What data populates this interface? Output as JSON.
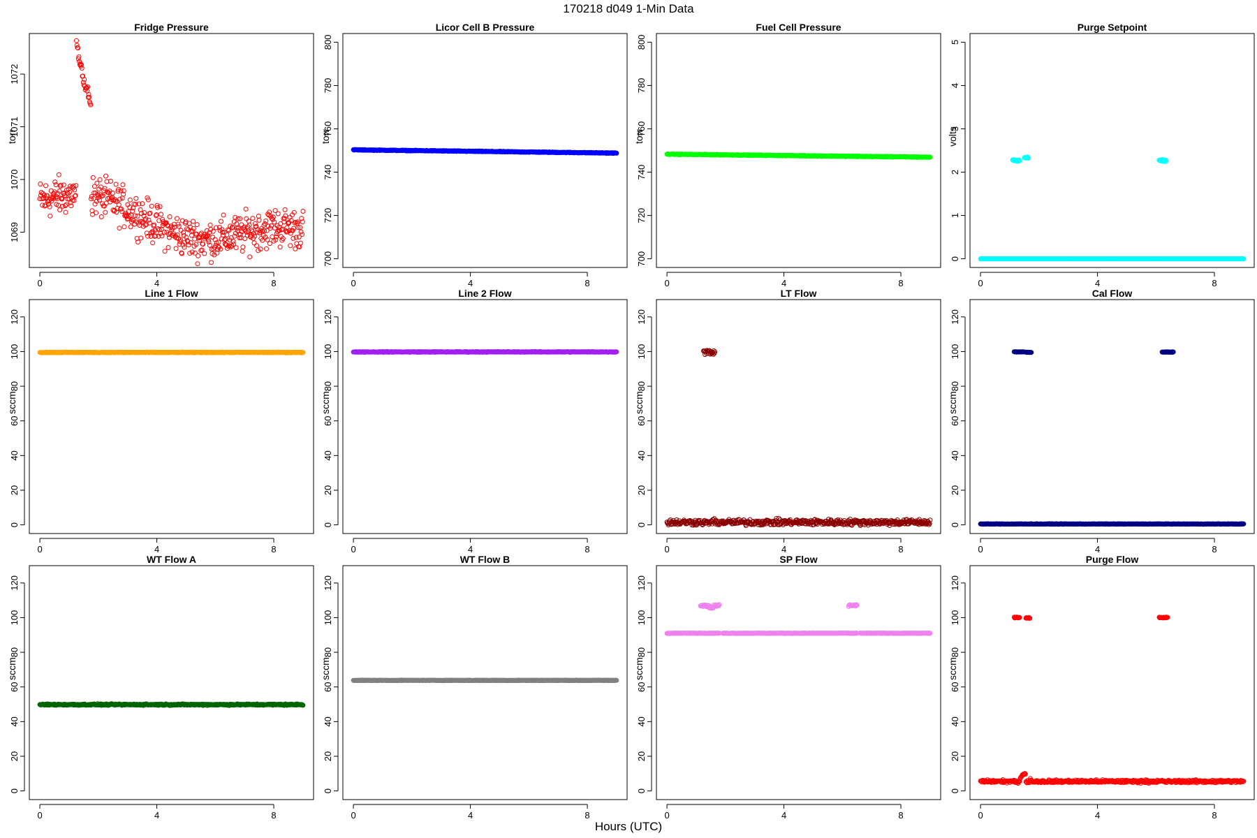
{
  "figure": {
    "title": "170218   d049   1-Min Data",
    "xlabel": "Hours (UTC)"
  },
  "chart_data": [
    {
      "id": "fridge-pressure",
      "type": "scatter",
      "title": "Fridge Pressure",
      "ylabel": "torr",
      "color": "#ff0000",
      "marker": "open-circle",
      "xlim": [
        -0.36,
        9.36
      ],
      "ylim": [
        1068.33,
        1072.77
      ],
      "xticks": [
        0,
        4,
        8
      ],
      "yticks": [
        1069,
        1070,
        1071,
        1072
      ],
      "pattern": {
        "kind": "noisy-trend",
        "start": 1069.6,
        "end": 1068.8,
        "noise": 0.55,
        "spike": {
          "start": 1.25,
          "end": 1.75,
          "peak": 1072.6,
          "low": 1071.4
        }
      }
    },
    {
      "id": "licor-cell-b-pressure",
      "type": "scatter",
      "title": "Licor Cell B Pressure",
      "ylabel": "torr",
      "color": "#0000ff",
      "marker": "open-circle",
      "xlim": [
        -0.36,
        9.36
      ],
      "ylim": [
        696,
        804
      ],
      "xticks": [
        0,
        4,
        8
      ],
      "yticks": [
        700,
        720,
        740,
        760,
        780,
        800
      ],
      "pattern": {
        "kind": "line",
        "start": 750.3,
        "end": 748.8,
        "noise": 0.25
      }
    },
    {
      "id": "fuel-cell-pressure",
      "type": "scatter",
      "title": "Fuel Cell Pressure",
      "ylabel": "torr",
      "color": "#00ff00",
      "marker": "open-circle",
      "xlim": [
        -0.36,
        9.36
      ],
      "ylim": [
        696,
        804
      ],
      "xticks": [
        0,
        4,
        8
      ],
      "yticks": [
        700,
        720,
        740,
        760,
        780,
        800
      ],
      "pattern": {
        "kind": "line",
        "start": 748.3,
        "end": 746.9,
        "noise": 0.25
      }
    },
    {
      "id": "purge-setpoint",
      "type": "scatter",
      "title": "Purge Setpoint",
      "ylabel": "volts",
      "color": "#00ffff",
      "marker": "open-circle",
      "xlim": [
        -0.36,
        9.36
      ],
      "ylim": [
        -0.2,
        5.2
      ],
      "xticks": [
        0,
        4,
        8
      ],
      "yticks": [
        0,
        1,
        2,
        3,
        4,
        5
      ],
      "pattern": {
        "kind": "baseline-events",
        "base": 0.0,
        "noise": 0.0,
        "event_noise": 0.03,
        "events": [
          {
            "start": 1.1,
            "end": 1.35,
            "value": 2.27
          },
          {
            "start": 1.5,
            "end": 1.65,
            "value": 2.33
          },
          {
            "start": 6.1,
            "end": 6.35,
            "value": 2.27
          }
        ]
      }
    },
    {
      "id": "line-1-flow",
      "type": "scatter",
      "title": "Line 1 Flow",
      "ylabel": "sccm",
      "color": "#ffa500",
      "marker": "open-circle",
      "xlim": [
        -0.36,
        9.36
      ],
      "ylim": [
        -5,
        130
      ],
      "xticks": [
        0,
        4,
        8
      ],
      "yticks": [
        0,
        20,
        40,
        60,
        80,
        100,
        120
      ],
      "pattern": {
        "kind": "line",
        "start": 99.5,
        "end": 99.5,
        "noise": 0.3
      }
    },
    {
      "id": "line-2-flow",
      "type": "scatter",
      "title": "Line 2 Flow",
      "ylabel": "sccm",
      "color": "#a020f0",
      "marker": "open-circle",
      "xlim": [
        -0.36,
        9.36
      ],
      "ylim": [
        -5,
        130
      ],
      "xticks": [
        0,
        4,
        8
      ],
      "yticks": [
        0,
        20,
        40,
        60,
        80,
        100,
        120
      ],
      "pattern": {
        "kind": "line",
        "start": 99.8,
        "end": 99.8,
        "noise": 0.3
      }
    },
    {
      "id": "lt-flow",
      "type": "scatter",
      "title": "LT Flow",
      "ylabel": "sccm",
      "color": "#8b0000",
      "marker": "open-circle",
      "xlim": [
        -0.36,
        9.36
      ],
      "ylim": [
        -5,
        130
      ],
      "xticks": [
        0,
        4,
        8
      ],
      "yticks": [
        0,
        20,
        40,
        60,
        80,
        100,
        120
      ],
      "pattern": {
        "kind": "baseline-events",
        "base": 1.5,
        "noise": 2.5,
        "event_noise": 2.0,
        "events": [
          {
            "start": 1.25,
            "end": 1.65,
            "value": 99.5
          }
        ]
      }
    },
    {
      "id": "cal-flow",
      "type": "scatter",
      "title": "Cal Flow",
      "ylabel": "sccm",
      "color": "#000080",
      "marker": "open-circle",
      "xlim": [
        -0.36,
        9.36
      ],
      "ylim": [
        -5,
        130
      ],
      "xticks": [
        0,
        4,
        8
      ],
      "yticks": [
        0,
        20,
        40,
        60,
        80,
        100,
        120
      ],
      "pattern": {
        "kind": "baseline-events",
        "base": 0.5,
        "noise": 0.2,
        "event_noise": 0.2,
        "events": [
          {
            "start": 1.15,
            "end": 1.5,
            "value": 99.8
          },
          {
            "start": 1.55,
            "end": 1.75,
            "value": 99.6
          },
          {
            "start": 6.2,
            "end": 6.6,
            "value": 99.7
          }
        ]
      }
    },
    {
      "id": "wt-flow-a",
      "type": "scatter",
      "title": "WT Flow A",
      "ylabel": "sccm",
      "color": "#006400",
      "marker": "open-circle",
      "xlim": [
        -0.36,
        9.36
      ],
      "ylim": [
        -5,
        130
      ],
      "xticks": [
        0,
        4,
        8
      ],
      "yticks": [
        0,
        20,
        40,
        60,
        80,
        100,
        120
      ],
      "pattern": {
        "kind": "line",
        "start": 49.8,
        "end": 49.8,
        "noise": 0.6
      }
    },
    {
      "id": "wt-flow-b",
      "type": "scatter",
      "title": "WT Flow B",
      "ylabel": "sccm",
      "color": "#808080",
      "marker": "open-circle",
      "xlim": [
        -0.36,
        9.36
      ],
      "ylim": [
        -5,
        130
      ],
      "xticks": [
        0,
        4,
        8
      ],
      "yticks": [
        0,
        20,
        40,
        60,
        80,
        100,
        120
      ],
      "pattern": {
        "kind": "line",
        "start": 63.8,
        "end": 63.8,
        "noise": 0.2
      }
    },
    {
      "id": "sp-flow",
      "type": "scatter",
      "title": "SP Flow",
      "ylabel": "sccm",
      "color": "#ee82ee",
      "marker": "open-circle",
      "xlim": [
        -0.36,
        9.36
      ],
      "ylim": [
        -5,
        130
      ],
      "xticks": [
        0,
        4,
        8
      ],
      "yticks": [
        0,
        20,
        40,
        60,
        80,
        100,
        120
      ],
      "pattern": {
        "kind": "baseline-events",
        "base": 91.0,
        "noise": 0.2,
        "event_noise": 0.8,
        "events": [
          {
            "start": 1.15,
            "end": 1.45,
            "value": 107.0
          },
          {
            "start": 1.45,
            "end": 1.6,
            "value": 105.8
          },
          {
            "start": 1.6,
            "end": 1.8,
            "value": 107.0
          },
          {
            "start": 6.2,
            "end": 6.5,
            "value": 107.0
          }
        ],
        "gaps": [
          [
            1.8,
            1.9
          ],
          [
            6.5,
            6.6
          ]
        ]
      }
    },
    {
      "id": "purge-flow",
      "type": "scatter",
      "title": "Purge Flow",
      "ylabel": "sccm",
      "color": "#ff0000",
      "marker": "open-circle",
      "xlim": [
        -0.36,
        9.36
      ],
      "ylim": [
        -5,
        130
      ],
      "xticks": [
        0,
        4,
        8
      ],
      "yticks": [
        0,
        20,
        40,
        60,
        80,
        100,
        120
      ],
      "pattern": {
        "kind": "baseline-events",
        "base": 5.5,
        "noise": 1.2,
        "event_noise": 0.4,
        "events": [
          {
            "start": 1.15,
            "end": 1.35,
            "value": 100.0
          },
          {
            "start": 1.55,
            "end": 1.7,
            "value": 99.8
          },
          {
            "start": 6.1,
            "end": 6.4,
            "value": 100.0
          }
        ],
        "bumps": [
          {
            "start": 1.3,
            "end": 1.75,
            "value": 10.0
          }
        ]
      }
    }
  ]
}
